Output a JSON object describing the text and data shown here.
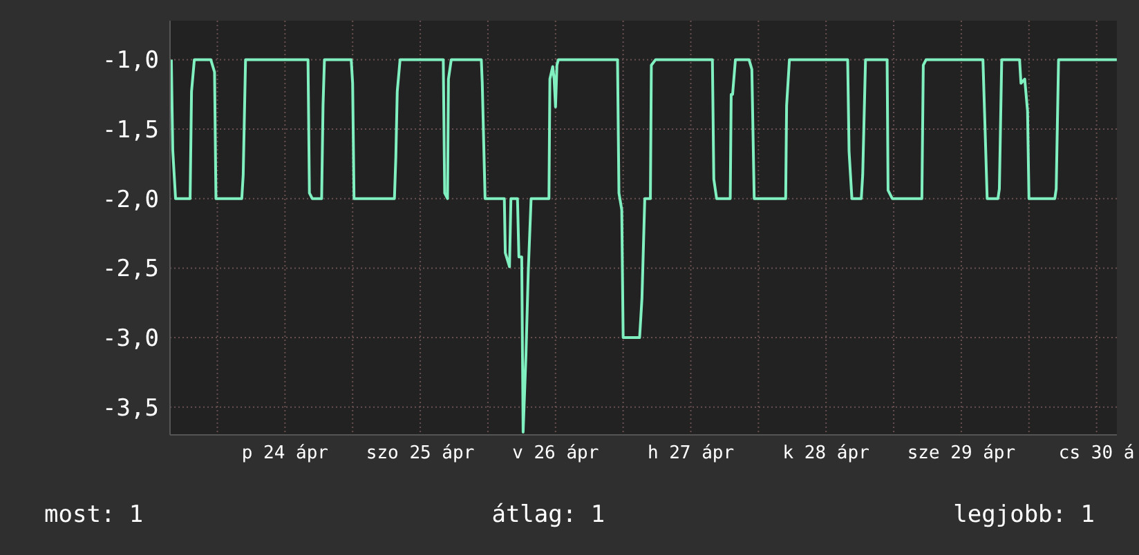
{
  "chart_data": {
    "type": "line",
    "line_style": "solid",
    "marker": "none",
    "grid": true,
    "xlim": [
      "--04-23T15:36",
      "--04-30T15:36"
    ],
    "ylim": [
      -3.7,
      -0.72
    ],
    "xticks": [
      {
        "value": "--04-24T00:00",
        "label": null
      },
      {
        "value": "--04-24T12:00",
        "label": "p 24 ápr"
      },
      {
        "value": "--04-25T00:00",
        "label": null
      },
      {
        "value": "--04-25T12:00",
        "label": "szo 25 ápr"
      },
      {
        "value": "--04-26T00:00",
        "label": null
      },
      {
        "value": "--04-26T12:00",
        "label": "v 26 ápr"
      },
      {
        "value": "--04-27T00:00",
        "label": null
      },
      {
        "value": "--04-27T12:00",
        "label": "h 27 ápr"
      },
      {
        "value": "--04-28T00:00",
        "label": null
      },
      {
        "value": "--04-28T12:00",
        "label": "k 28 ápr"
      },
      {
        "value": "--04-29T00:00",
        "label": null
      },
      {
        "value": "--04-29T12:00",
        "label": "sze 29 ápr"
      },
      {
        "value": "--04-30T00:00",
        "label": null
      },
      {
        "value": "--04-30T12:00",
        "label": "cs 30 á"
      }
    ],
    "yticks": [
      {
        "value": -1,
        "label": "-1,0"
      },
      {
        "value": -1.5,
        "label": "-1,5"
      },
      {
        "value": -2,
        "label": "-2,0"
      },
      {
        "value": -2.5,
        "label": "-2,5"
      },
      {
        "value": -3,
        "label": "-3,0"
      },
      {
        "value": -3.5,
        "label": "-3,5"
      }
    ],
    "annotations": [
      "most: 1",
      "átlag: 1",
      "legjobb: 1"
    ],
    "series": [
      {
        "color": "#80f0c0",
        "x": [
          "--04-23T15:50",
          "--04-23T16:05",
          "--04-23T16:35",
          "--04-23T19:10",
          "--04-23T19:25",
          "--04-23T19:55",
          "--04-23T22:50",
          "--04-23T23:30",
          "--04-23T23:45",
          "--04-24T04:20",
          "--04-24T04:35",
          "--04-24T05:00",
          "--04-24T16:05",
          "--04-24T16:20",
          "--04-24T16:50",
          "--04-24T18:30",
          "--04-24T18:45",
          "--04-24T19:00",
          "--04-24T23:45",
          "--04-25T00:00",
          "--04-25T00:15",
          "--04-25T07:25",
          "--04-25T07:40",
          "--04-25T07:55",
          "--04-25T08:25",
          "--04-25T16:05",
          "--04-25T16:20",
          "--04-25T16:50",
          "--04-25T17:00",
          "--04-25T17:30",
          "--04-25T22:50",
          "--04-25T23:00",
          "--04-25T23:30",
          "--04-26T02:55",
          "--04-26T03:05",
          "--04-26T03:50",
          "--04-26T04:05",
          "--04-26T05:15",
          "--04-26T05:30",
          "--04-26T06:00",
          "--04-26T06:15",
          "--04-26T06:45",
          "--04-26T07:10",
          "--04-26T07:40",
          "--04-26T10:50",
          "--04-26T11:00",
          "--04-26T11:30",
          "--04-26T11:45",
          "--04-26T12:00",
          "--04-26T12:15",
          "--04-26T12:30",
          "--04-26T23:00",
          "--04-26T23:15",
          "--04-26T23:45",
          "--04-27T00:00",
          "--04-27T02:55",
          "--04-27T03:20",
          "--04-27T03:50",
          "--04-27T04:50",
          "--04-27T05:00",
          "--04-27T05:45",
          "--04-27T15:50",
          "--04-27T16:05",
          "--04-27T16:35",
          "--04-27T19:00",
          "--04-27T19:10",
          "--04-27T19:25",
          "--04-27T19:55",
          "--04-27T22:20",
          "--04-27T22:50",
          "--04-27T23:15",
          "--04-28T04:50",
          "--04-28T05:00",
          "--04-28T05:30",
          "--04-28T15:50",
          "--04-28T16:05",
          "--04-28T16:35",
          "--04-28T18:15",
          "--04-28T18:30",
          "--04-28T19:00",
          "--04-28T22:50",
          "--04-28T23:00",
          "--04-28T23:45",
          "--04-29T05:00",
          "--04-29T05:15",
          "--04-29T05:45",
          "--04-29T15:50",
          "--04-29T16:20",
          "--04-29T16:35",
          "--04-29T18:30",
          "--04-29T18:45",
          "--04-29T19:10",
          "--04-29T22:20",
          "--04-29T22:35",
          "--04-29T23:15",
          "--04-29T23:45",
          "--04-30T00:00",
          "--04-30T04:35",
          "--04-30T04:50",
          "--04-30T05:15",
          "--04-30T15:35"
        ],
        "values": [
          -1,
          -1.65,
          -2,
          -2,
          -1.23,
          -1,
          -1,
          -1.09,
          -2,
          -2,
          -1.83,
          -1,
          -1,
          -1.96,
          -2,
          -2,
          -1.33,
          -1,
          -1,
          -1.17,
          -2,
          -2,
          -1.7,
          -1.23,
          -1,
          -1,
          -1.96,
          -2,
          -1.14,
          -1,
          -1,
          -1.17,
          -2,
          -2,
          -2.39,
          -2.49,
          -2,
          -2,
          -2.42,
          -2.42,
          -3.68,
          -3.13,
          -2.52,
          -2,
          -2,
          -1.14,
          -1.05,
          -1.14,
          -1.34,
          -1.04,
          -1,
          -1,
          -1.96,
          -2.08,
          -3,
          -3,
          -2.72,
          -2,
          -2,
          -1.04,
          -1,
          -1,
          -1.86,
          -2,
          -2,
          -1.25,
          -1.25,
          -1,
          -1,
          -1.07,
          -2,
          -2,
          -1.33,
          -1,
          -1,
          -1.66,
          -2,
          -2,
          -1.83,
          -1,
          -1,
          -1.94,
          -2,
          -2,
          -1.04,
          -1,
          -1,
          -1.66,
          -2,
          -2,
          -1.93,
          -1,
          -1,
          -1.17,
          -1.14,
          -1.37,
          -2,
          -2,
          -1.93,
          -1,
          -1
        ]
      }
    ]
  }
}
